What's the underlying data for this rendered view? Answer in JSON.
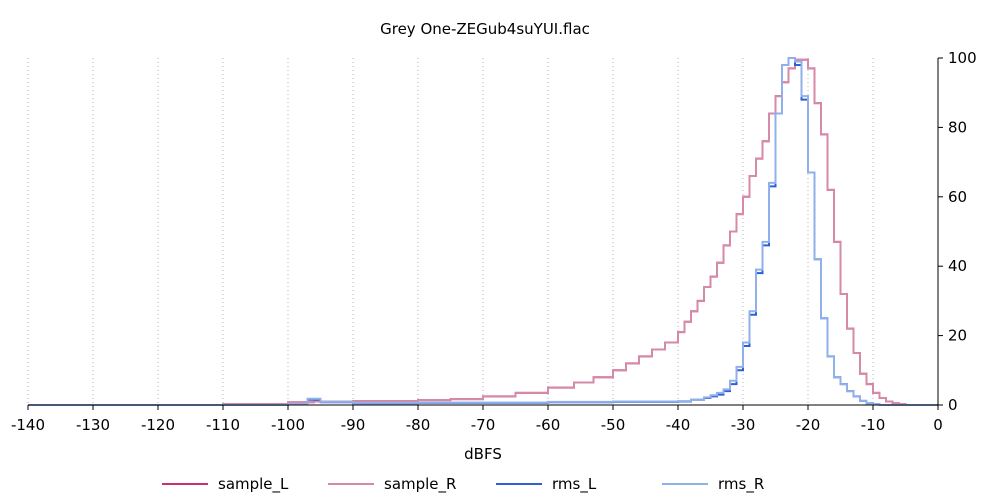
{
  "chart_data": {
    "type": "line",
    "title": "Grey One-ZEGub4suYUI.flac",
    "xlabel": "dBFS",
    "ylabel": "",
    "xlim": [
      -140,
      0
    ],
    "ylim": [
      0,
      100
    ],
    "x_ticks": [
      -140,
      -130,
      -120,
      -110,
      -100,
      -90,
      -80,
      -70,
      -60,
      -50,
      -40,
      -30,
      -20,
      -10,
      0
    ],
    "y_ticks": [
      0,
      20,
      40,
      60,
      80,
      100
    ],
    "y_axis_side": "right",
    "grid": "vertical dotted",
    "legend_position": "bottom",
    "series": [
      {
        "name": "sample_L",
        "color": "#c8307a",
        "x": [
          -140,
          -110,
          -100,
          -96,
          -90,
          -80,
          -75,
          -70,
          -65,
          -60,
          -56,
          -53,
          -50,
          -48,
          -46,
          -44,
          -42,
          -40,
          -39,
          -38,
          -37,
          -36,
          -35,
          -34,
          -33,
          -32,
          -31,
          -30,
          -29,
          -28,
          -27,
          -26,
          -25,
          -24,
          -23,
          -22,
          -21,
          -20,
          -19,
          -18,
          -17,
          -16,
          -15,
          -14,
          -13,
          -12,
          -11,
          -10,
          -9,
          -8,
          -7,
          -6,
          -5,
          -4,
          0
        ],
        "y": [
          0,
          0.3,
          0.8,
          1.0,
          1.1,
          1.4,
          1.7,
          2.5,
          3.5,
          5,
          6.5,
          8,
          10,
          12,
          14,
          16,
          18,
          21,
          24,
          27,
          30,
          34,
          37,
          41,
          46,
          50,
          55,
          60,
          66,
          71,
          76,
          84,
          89,
          93,
          97,
          99.5,
          99.5,
          97,
          87,
          78,
          62,
          47,
          32,
          22,
          15,
          9,
          6,
          3.5,
          2,
          1,
          0.5,
          0.2,
          0,
          0,
          0
        ]
      },
      {
        "name": "sample_R",
        "color": "#d58aa8",
        "x": [
          -140,
          -110,
          -100,
          -96,
          -90,
          -80,
          -75,
          -70,
          -65,
          -60,
          -56,
          -53,
          -50,
          -48,
          -46,
          -44,
          -42,
          -40,
          -39,
          -38,
          -37,
          -36,
          -35,
          -34,
          -33,
          -32,
          -31,
          -30,
          -29,
          -28,
          -27,
          -26,
          -25,
          -24,
          -23,
          -22,
          -21,
          -20,
          -19,
          -18,
          -17,
          -16,
          -15,
          -14,
          -13,
          -12,
          -11,
          -10,
          -9,
          -8,
          -7,
          -6,
          -5,
          -4,
          0
        ],
        "y": [
          0,
          0.3,
          0.8,
          1.0,
          1.1,
          1.4,
          1.7,
          2.5,
          3.5,
          5,
          6.5,
          8,
          10,
          12,
          14,
          16,
          18,
          21,
          24,
          27,
          30,
          34,
          37,
          41,
          46,
          50,
          55,
          60,
          66,
          71,
          76,
          84,
          89,
          93,
          97,
          99.5,
          99.5,
          97,
          87,
          78,
          62,
          47,
          32,
          22,
          15,
          9,
          6,
          3.5,
          2,
          1,
          0.5,
          0.2,
          0,
          0,
          0
        ]
      },
      {
        "name": "rms_L",
        "color": "#2d5fd6",
        "x": [
          -140,
          -100,
          -97,
          -95,
          -90,
          -80,
          -60,
          -50,
          -40,
          -38,
          -36,
          -35,
          -34,
          -33,
          -32,
          -31,
          -30,
          -29,
          -28,
          -27,
          -26,
          -25,
          -24,
          -23,
          -22,
          -21,
          -20,
          -19,
          -18,
          -17,
          -16,
          -15,
          -14,
          -13,
          -12,
          -11,
          -10,
          -9,
          -8,
          0
        ],
        "y": [
          0,
          0.3,
          1.5,
          0.8,
          0.5,
          0.6,
          0.8,
          0.9,
          1.0,
          1.5,
          2,
          2.5,
          3,
          4,
          6,
          10,
          17,
          26,
          38,
          46,
          63,
          84,
          98,
          100,
          98,
          88,
          67,
          42,
          25,
          14,
          8,
          6,
          4,
          2.5,
          1.2,
          0.5,
          0.2,
          0,
          0,
          0
        ]
      },
      {
        "name": "rms_R",
        "color": "#8fb0ea",
        "x": [
          -140,
          -100,
          -97,
          -95,
          -90,
          -80,
          -60,
          -50,
          -40,
          -38,
          -36,
          -35,
          -34,
          -33,
          -32,
          -31,
          -30,
          -29,
          -28,
          -27,
          -26,
          -25,
          -24,
          -23,
          -22,
          -21,
          -20,
          -19,
          -18,
          -17,
          -16,
          -15,
          -14,
          -13,
          -12,
          -11,
          -10,
          -9,
          -8,
          0
        ],
        "y": [
          0,
          0.3,
          1.8,
          0.9,
          0.6,
          0.7,
          0.9,
          1.0,
          1.1,
          1.6,
          2.2,
          2.8,
          3.5,
          4.5,
          7,
          11,
          18,
          27,
          39,
          47,
          64,
          84,
          98,
          100,
          99,
          89,
          67,
          42,
          25,
          14,
          8,
          6,
          4,
          2.5,
          1.2,
          0.5,
          0.2,
          0,
          0,
          0
        ]
      }
    ]
  }
}
